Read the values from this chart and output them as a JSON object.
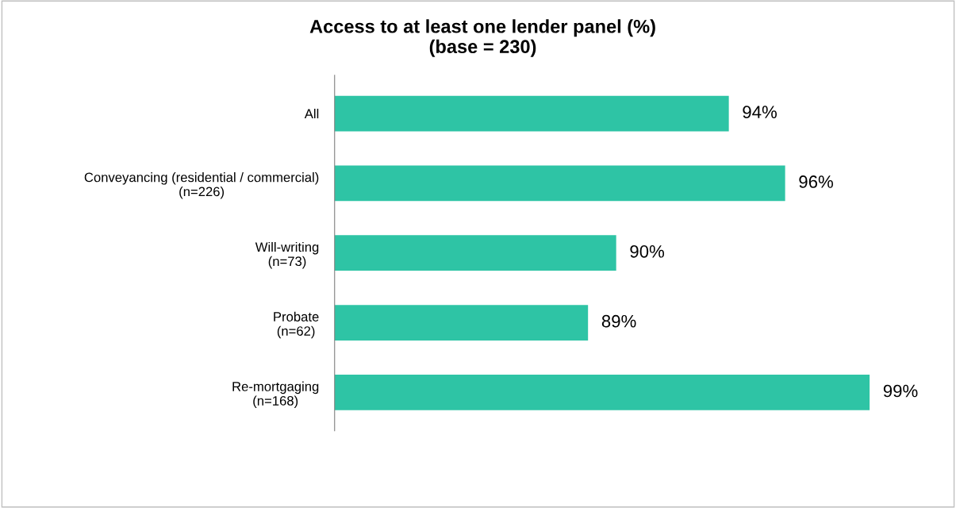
{
  "chart_data": {
    "type": "bar",
    "orientation": "horizontal",
    "title": "Access to at least one lender panel (%)\n(base = 230)",
    "categories": [
      "All",
      "Conveyancing (residential / commercial)\n(n=226)",
      "Will-writing\n(n=73)",
      "Probate\n(n=62)",
      "Re-mortgaging\n(n=168)"
    ],
    "values": [
      94,
      96,
      90,
      89,
      99
    ],
    "value_labels": [
      "94%",
      "96%",
      "90%",
      "89%",
      "99%"
    ],
    "color": "#2ec4a5",
    "xlim": [
      80,
      102
    ],
    "tick_labels": "y",
    "grid": false,
    "legend": false
  }
}
